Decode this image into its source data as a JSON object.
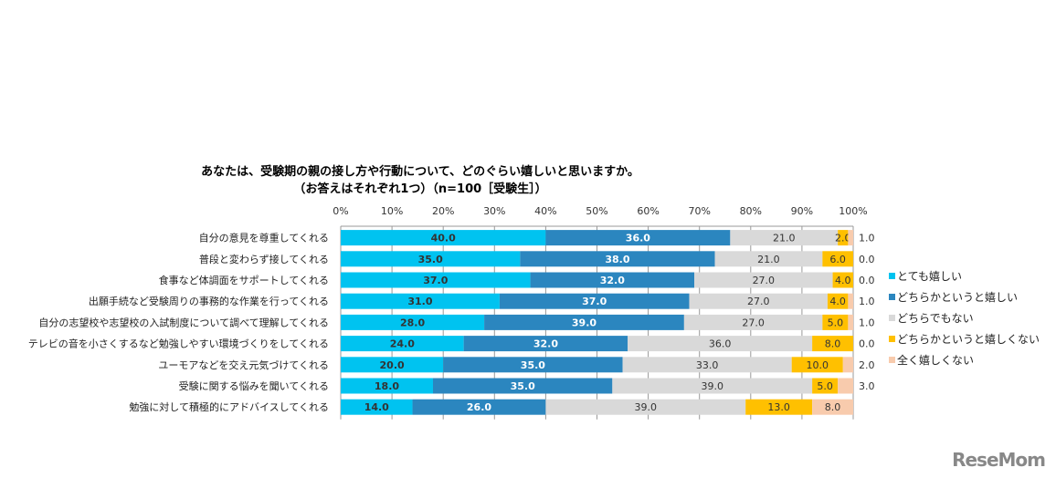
{
  "chart_data": {
    "type": "bar",
    "stacked": true,
    "orientation": "horizontal",
    "title": "あなたは、受験期の親の接し方や行動について、どのぐらい嬉しいと思いますか。",
    "subtitle": "（お答えはそれぞれ1つ）（n=100［受験生］）",
    "xlim": [
      0,
      100
    ],
    "xticks": [
      "0%",
      "10%",
      "20%",
      "30%",
      "40%",
      "50%",
      "60%",
      "70%",
      "80%",
      "90%",
      "100%"
    ],
    "categories": [
      "自分の意見を尊重してくれる",
      "普段と変わらず接してくれる",
      "食事など体調面をサポートしてくれる",
      "出願手続など受験周りの事務的な作業を行ってくれる",
      "自分の志望校や志望校の入試制度について調べて理解してくれる",
      "テレビの音を小さくするなど勉強しやすい環境づくりをしてくれる",
      "ユーモアなどを交え元気づけてくれる",
      "受験に関する悩みを聞いてくれる",
      "勉強に対して積極的にアドバイスしてくれる"
    ],
    "series": [
      {
        "name": "とても嬉しい",
        "color": "#00c3f0",
        "values": [
          40.0,
          35.0,
          37.0,
          31.0,
          28.0,
          24.0,
          20.0,
          18.0,
          14.0
        ]
      },
      {
        "name": "どちらかというと嬉しい",
        "color": "#2b86bf",
        "values": [
          36.0,
          38.0,
          32.0,
          37.0,
          39.0,
          32.0,
          35.0,
          35.0,
          26.0
        ]
      },
      {
        "name": "どちらでもない",
        "color": "#d9d9d9",
        "values": [
          21.0,
          21.0,
          27.0,
          27.0,
          27.0,
          36.0,
          33.0,
          39.0,
          39.0
        ]
      },
      {
        "name": "どちらかというと嬉しくない",
        "color": "#ffc000",
        "values": [
          2.0,
          6.0,
          4.0,
          4.0,
          5.0,
          8.0,
          10.0,
          5.0,
          13.0
        ]
      },
      {
        "name": "全く嬉しくない",
        "color": "#f8cbad",
        "values": [
          1.0,
          0.0,
          0.0,
          1.0,
          1.0,
          0.0,
          2.0,
          3.0,
          8.0
        ]
      }
    ],
    "legend": "right",
    "grid": false
  },
  "logo": "ReseMom"
}
